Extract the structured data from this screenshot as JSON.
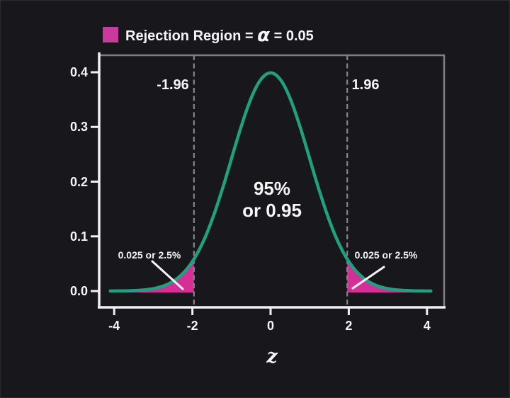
{
  "colors": {
    "background": "#17171c",
    "text": "#f5f5f7",
    "axis": "#f1f1f3",
    "frame_gray": "#7e7f84",
    "dashed_line": "#85868b",
    "curve": "#21a07f",
    "rejection_fill": "#d42f96",
    "legend_swatch": "#c83a9c"
  },
  "legend": {
    "label_prefix": "Rejection Region = ",
    "alpha_symbol": "α",
    "label_suffix": " = 0.05"
  },
  "annotations": {
    "left_critical_label": "-1.96",
    "right_critical_label": "1.96",
    "center_line1": "95%",
    "center_line2": "or 0.95",
    "left_tail_label": "0.025 or 2.5%",
    "right_tail_label": "0.025 or 2.5%"
  },
  "chart_data": {
    "type": "area",
    "title": "Rejection Region = α = 0.05",
    "distribution": "standard normal pdf",
    "mean": 0,
    "sd": 1,
    "x_range": [
      -4.1,
      4.1
    ],
    "xlabel": "z",
    "ylabel": "",
    "xlim": [
      -4.4,
      4.45
    ],
    "ylim": [
      0,
      0.43
    ],
    "grid": false,
    "legend_position": "top-left",
    "xticks": [
      {
        "value": -4,
        "label": "-4"
      },
      {
        "value": -2,
        "label": "-2"
      },
      {
        "value": 0,
        "label": "0"
      },
      {
        "value": 2,
        "label": "2"
      },
      {
        "value": 4,
        "label": "4"
      }
    ],
    "yticks": [
      {
        "value": 0.0,
        "label": "0.0"
      },
      {
        "value": 0.1,
        "label": "0.1"
      },
      {
        "value": 0.2,
        "label": "0.2"
      },
      {
        "value": 0.3,
        "label": "0.3"
      },
      {
        "value": 0.4,
        "label": "0.4"
      }
    ],
    "critical_values": [
      -1.96,
      1.96
    ],
    "alpha": 0.05,
    "tail_area": 0.025,
    "center_area": 0.95,
    "curve_points": [
      {
        "x": -4.0,
        "y": 0.0001
      },
      {
        "x": -3.5,
        "y": 0.0009
      },
      {
        "x": -3.0,
        "y": 0.0044
      },
      {
        "x": -2.5,
        "y": 0.0175
      },
      {
        "x": -2.0,
        "y": 0.054
      },
      {
        "x": -1.96,
        "y": 0.0584
      },
      {
        "x": -1.5,
        "y": 0.1295
      },
      {
        "x": -1.0,
        "y": 0.242
      },
      {
        "x": -0.5,
        "y": 0.3521
      },
      {
        "x": 0.0,
        "y": 0.3989
      },
      {
        "x": 0.5,
        "y": 0.3521
      },
      {
        "x": 1.0,
        "y": 0.242
      },
      {
        "x": 1.5,
        "y": 0.1295
      },
      {
        "x": 1.96,
        "y": 0.0584
      },
      {
        "x": 2.0,
        "y": 0.054
      },
      {
        "x": 2.5,
        "y": 0.0175
      },
      {
        "x": 3.0,
        "y": 0.0044
      },
      {
        "x": 3.5,
        "y": 0.0009
      },
      {
        "x": 4.0,
        "y": 0.0001
      }
    ]
  }
}
